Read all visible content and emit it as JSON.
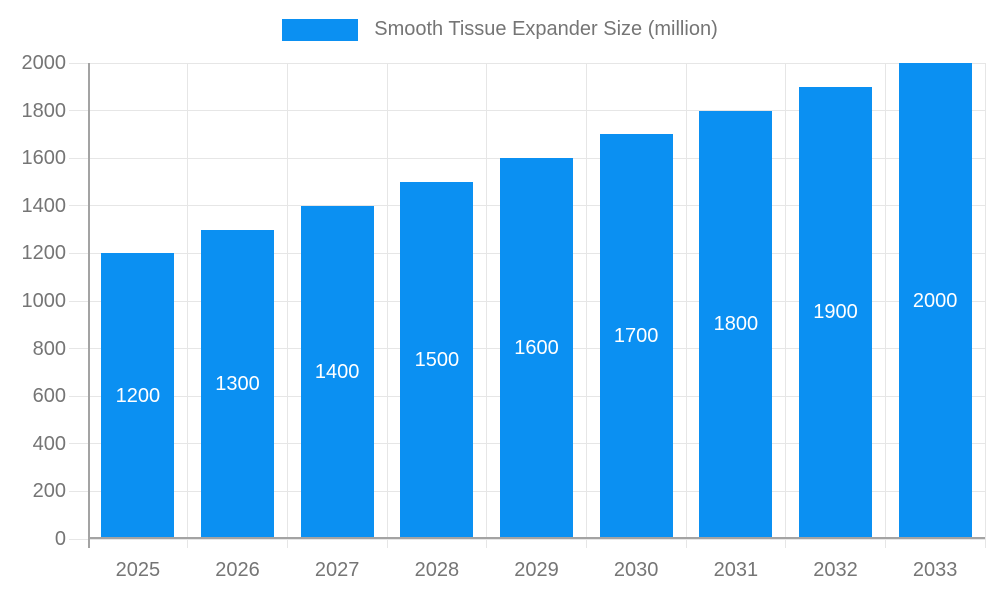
{
  "chart_data": {
    "type": "bar",
    "title": "Smooth Tissue Expander Size (million)",
    "legend_position": "top",
    "categories": [
      "2025",
      "2026",
      "2027",
      "2028",
      "2029",
      "2030",
      "2031",
      "2032",
      "2033"
    ],
    "series": [
      {
        "name": "Smooth Tissue Expander Size (million)",
        "values": [
          1200,
          1300,
          1400,
          1500,
          1600,
          1700,
          1800,
          1900,
          2000
        ]
      }
    ],
    "bar_labels": [
      "1200",
      "1300",
      "1400",
      "1500",
      "1600",
      "1700",
      "1800",
      "1900",
      "2000"
    ],
    "xlabel": "",
    "ylabel": "",
    "ylim": [
      0,
      2000
    ],
    "yticks": [
      0,
      200,
      400,
      600,
      800,
      1000,
      1200,
      1400,
      1600,
      1800,
      2000
    ],
    "grid": true,
    "colors": {
      "bar": "#0b90f2",
      "grid": "#e6e6e6",
      "axis": "#a3a3a3",
      "text": "#757575",
      "bar_label": "#ffffff",
      "background": "#ffffff"
    }
  }
}
